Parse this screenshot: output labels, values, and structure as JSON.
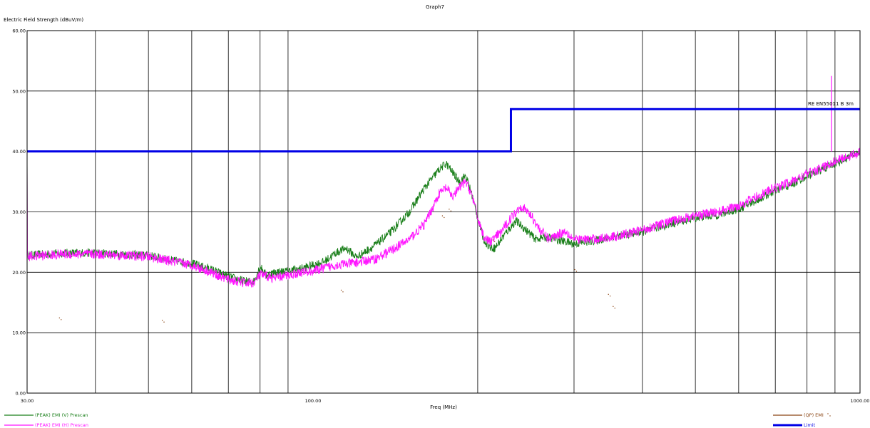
{
  "chart_data": {
    "type": "line",
    "title": "Graph7",
    "xlabel": "Freq (MHz)",
    "ylabel": "Electric Field Strength (dBuV/m)",
    "x_scale": "log",
    "xlim": [
      30,
      1000
    ],
    "ylim": [
      0,
      60
    ],
    "x_tick_labels": [
      {
        "value": 30,
        "label": "30.00"
      },
      {
        "value": 100,
        "label": "100.00"
      },
      {
        "value": 1000,
        "label": "1000.00"
      }
    ],
    "x_grid": [
      40,
      50,
      60,
      70,
      80,
      90,
      200,
      300,
      400,
      500,
      600,
      700,
      800,
      900
    ],
    "y_ticks": [
      {
        "value": 0,
        "label": "0.00"
      },
      {
        "value": 10,
        "label": "10.00"
      },
      {
        "value": 20,
        "label": "20.00"
      },
      {
        "value": 30,
        "label": "30.00"
      },
      {
        "value": 40,
        "label": "40.00"
      },
      {
        "value": 50,
        "label": "50.00"
      },
      {
        "value": 60,
        "label": "60.00"
      }
    ],
    "grid": true,
    "series": [
      {
        "name": "(PEAK) EMI (V) Prescan",
        "color": "#1a7f1a",
        "noise": 0.7,
        "points": [
          [
            30,
            22.8
          ],
          [
            35,
            23.2
          ],
          [
            40,
            23.2
          ],
          [
            45,
            23.0
          ],
          [
            50,
            22.8
          ],
          [
            55,
            22.0
          ],
          [
            60,
            21.5
          ],
          [
            65,
            20.5
          ],
          [
            70,
            19.3
          ],
          [
            75,
            18.5
          ],
          [
            78,
            18.5
          ],
          [
            80,
            21.0
          ],
          [
            82,
            19.5
          ],
          [
            85,
            20.0
          ],
          [
            90,
            20.2
          ],
          [
            95,
            20.6
          ],
          [
            100,
            21.2
          ],
          [
            105,
            21.8
          ],
          [
            110,
            23.2
          ],
          [
            115,
            24.0
          ],
          [
            120,
            22.5
          ],
          [
            125,
            23.5
          ],
          [
            130,
            24.5
          ],
          [
            140,
            27.0
          ],
          [
            150,
            30.0
          ],
          [
            160,
            34.0
          ],
          [
            170,
            37.0
          ],
          [
            175,
            38.0
          ],
          [
            180,
            36.5
          ],
          [
            185,
            35.0
          ],
          [
            190,
            36.0
          ],
          [
            195,
            33.0
          ],
          [
            200,
            29.0
          ],
          [
            205,
            25.5
          ],
          [
            210,
            24.2
          ],
          [
            215,
            24.0
          ],
          [
            225,
            26.5
          ],
          [
            235,
            28.5
          ],
          [
            245,
            27.0
          ],
          [
            255,
            25.5
          ],
          [
            265,
            25.8
          ],
          [
            275,
            25.6
          ],
          [
            285,
            25.2
          ],
          [
            300,
            24.7
          ],
          [
            330,
            25.3
          ],
          [
            360,
            26.0
          ],
          [
            400,
            26.7
          ],
          [
            450,
            28.0
          ],
          [
            500,
            29.0
          ],
          [
            550,
            29.5
          ],
          [
            600,
            30.5
          ],
          [
            650,
            32.0
          ],
          [
            700,
            33.5
          ],
          [
            750,
            34.5
          ],
          [
            800,
            36.0
          ],
          [
            850,
            37.0
          ],
          [
            900,
            38.0
          ],
          [
            950,
            39.0
          ],
          [
            1000,
            40.0
          ]
        ]
      },
      {
        "name": "(PEAK) EMI (H) Prescan",
        "color": "#ff14ff",
        "noise": 0.8,
        "points": [
          [
            30,
            22.6
          ],
          [
            35,
            23.0
          ],
          [
            40,
            23.0
          ],
          [
            45,
            22.8
          ],
          [
            50,
            22.6
          ],
          [
            55,
            21.8
          ],
          [
            60,
            21.2
          ],
          [
            65,
            20.0
          ],
          [
            70,
            18.8
          ],
          [
            75,
            18.2
          ],
          [
            78,
            18.3
          ],
          [
            80,
            19.6
          ],
          [
            85,
            19.0
          ],
          [
            90,
            19.5
          ],
          [
            95,
            20.0
          ],
          [
            100,
            20.2
          ],
          [
            110,
            21.2
          ],
          [
            120,
            21.6
          ],
          [
            130,
            22.2
          ],
          [
            140,
            23.8
          ],
          [
            150,
            25.5
          ],
          [
            160,
            28.0
          ],
          [
            165,
            30.5
          ],
          [
            170,
            33.0
          ],
          [
            175,
            34.0
          ],
          [
            180,
            32.5
          ],
          [
            185,
            34.0
          ],
          [
            190,
            35.0
          ],
          [
            195,
            33.0
          ],
          [
            200,
            29.0
          ],
          [
            205,
            26.0
          ],
          [
            210,
            25.0
          ],
          [
            220,
            26.5
          ],
          [
            230,
            29.0
          ],
          [
            240,
            31.0
          ],
          [
            250,
            29.5
          ],
          [
            260,
            27.0
          ],
          [
            270,
            25.5
          ],
          [
            280,
            26.3
          ],
          [
            290,
            26.8
          ],
          [
            300,
            25.4
          ],
          [
            330,
            25.5
          ],
          [
            360,
            26.0
          ],
          [
            400,
            27.0
          ],
          [
            450,
            28.4
          ],
          [
            500,
            29.4
          ],
          [
            550,
            30.0
          ],
          [
            600,
            31.0
          ],
          [
            650,
            32.6
          ],
          [
            700,
            34.0
          ],
          [
            750,
            35.0
          ],
          [
            800,
            36.3
          ],
          [
            850,
            37.2
          ],
          [
            900,
            38.4
          ],
          [
            950,
            39.2
          ],
          [
            1000,
            39.8
          ]
        ]
      },
      {
        "name": "(QP) EMI",
        "color": "#8b4513",
        "points": [
          [
            34.5,
            12.3
          ],
          [
            53.2,
            11.9
          ],
          [
            113.0,
            16.9
          ],
          [
            173.0,
            29.2
          ],
          [
            178.0,
            30.3
          ],
          [
            214.0,
            25.2
          ],
          [
            302.0,
            20.3
          ],
          [
            348.0,
            16.2
          ],
          [
            355.0,
            14.2
          ]
        ]
      },
      {
        "name": "Limit",
        "color": "#0000e6",
        "points": [
          [
            30,
            40
          ],
          [
            230,
            40
          ],
          [
            230,
            47
          ],
          [
            1000,
            47
          ]
        ]
      }
    ],
    "spike": {
      "x": 887,
      "y_top": 52.5,
      "y_base": 40.0
    },
    "annotation": {
      "text": "RE EN55011 B 3m"
    },
    "legend": "bottom"
  }
}
